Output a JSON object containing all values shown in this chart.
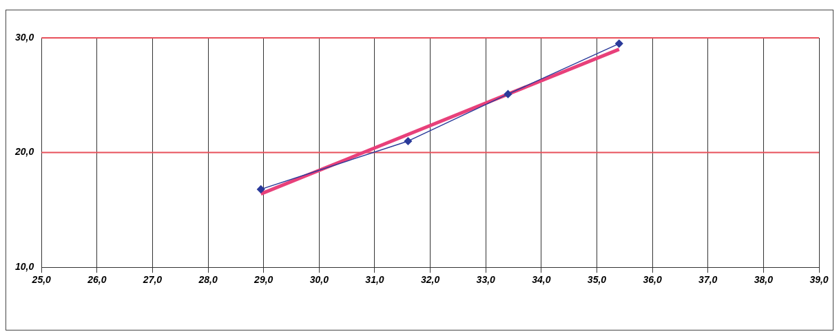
{
  "chart_data": {
    "type": "line",
    "xlim": [
      25,
      39
    ],
    "xticks": [
      {
        "value": 25,
        "label": "25,0"
      },
      {
        "value": 26,
        "label": "26,0"
      },
      {
        "value": 27,
        "label": "27,0"
      },
      {
        "value": 28,
        "label": "28,0"
      },
      {
        "value": 29,
        "label": "29,0"
      },
      {
        "value": 30,
        "label": "30,0"
      },
      {
        "value": 31,
        "label": "31,0"
      },
      {
        "value": 32,
        "label": "32,0"
      },
      {
        "value": 33,
        "label": "33,0"
      },
      {
        "value": 34,
        "label": "34,0"
      },
      {
        "value": 35,
        "label": "35,0"
      },
      {
        "value": 36,
        "label": "36,0"
      },
      {
        "value": 37,
        "label": "37,0"
      },
      {
        "value": 38,
        "label": "38,0"
      },
      {
        "value": 39,
        "label": "39,0"
      }
    ],
    "ylim": [
      10,
      30
    ],
    "yticks": [
      {
        "value": 10,
        "label": "10,0"
      },
      {
        "value": 20,
        "label": "20,0"
      },
      {
        "value": 30,
        "label": "30,0"
      }
    ],
    "grid": "x",
    "ref_lines": [
      {
        "axis": "y",
        "value": 20,
        "color": "#e8505a"
      },
      {
        "axis": "y",
        "value": 30,
        "color": "#e8505a"
      }
    ],
    "series": [
      {
        "color": "#2a3a9a",
        "marker": "diamond",
        "x": [
          28.95,
          31.6,
          33.4,
          35.4
        ],
        "values": [
          16.8,
          21.0,
          25.1,
          29.5
        ]
      },
      {
        "color": "#e8407a",
        "marker": "none",
        "x": [
          28.95,
          35.4
        ],
        "values": [
          16.4,
          29.0
        ]
      }
    ]
  }
}
